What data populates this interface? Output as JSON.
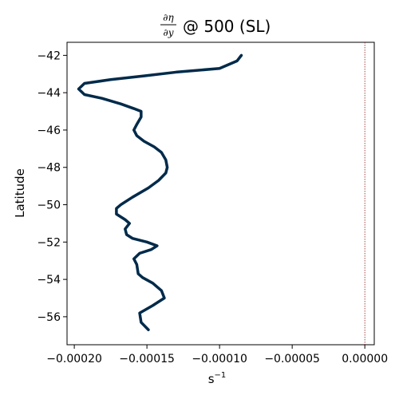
{
  "chart_data": {
    "type": "line",
    "title_prefix_numerator": "∂η",
    "title_prefix_denominator": "∂y",
    "title_suffix": "@ 500 (SL)",
    "xlabel_base": "s",
    "xlabel_exponent": "−1",
    "ylabel": "Latitude",
    "xlim": [
      -0.000205,
      6.5e-06
    ],
    "ylim": [
      -57.5,
      -41.3
    ],
    "xticks": [
      -0.0002,
      -0.00015,
      -0.0001,
      -5e-05,
      0.0
    ],
    "xtick_labels": [
      "−0.00020",
      "−0.00015",
      "−0.00010",
      "−0.00005",
      "0.00000"
    ],
    "yticks": [
      -42,
      -44,
      -46,
      -48,
      -50,
      -52,
      -54,
      -56
    ],
    "ytick_labels": [
      "−42",
      "−44",
      "−46",
      "−48",
      "−50",
      "−52",
      "−54",
      "−56"
    ],
    "reference_line": {
      "x": 0.0,
      "color": "#8b1a1a",
      "style": "dotted"
    },
    "series": [
      {
        "color": "#002a4a",
        "x": [
          -8.5e-05,
          -8.8e-05,
          -0.0001,
          -0.00013,
          -0.000152,
          -0.000175,
          -0.000193,
          -0.000197,
          -0.000193,
          -0.000181,
          -0.000168,
          -0.000159,
          -0.000154,
          -0.000154,
          -0.000157,
          -0.000159,
          -0.000157,
          -0.000152,
          -0.000145,
          -0.00014,
          -0.000137,
          -0.000136,
          -0.000137,
          -0.000142,
          -0.000149,
          -0.00016,
          -0.000168,
          -0.000171,
          -0.000171,
          -0.000165,
          -0.000162,
          -0.000165,
          -0.000164,
          -0.00016,
          -0.00015,
          -0.000143,
          -0.000147,
          -0.000155,
          -0.000159,
          -0.000157,
          -0.000156,
          -0.000153,
          -0.000146,
          -0.00014,
          -0.000138,
          -0.000146,
          -0.000155,
          -0.000154,
          -0.000149
        ],
        "y": [
          -42.0,
          -42.3,
          -42.7,
          -42.9,
          -43.1,
          -43.3,
          -43.5,
          -43.8,
          -44.1,
          -44.3,
          -44.6,
          -44.85,
          -45.0,
          -45.3,
          -45.7,
          -46.0,
          -46.3,
          -46.6,
          -46.9,
          -47.2,
          -47.6,
          -48.0,
          -48.3,
          -48.7,
          -49.1,
          -49.6,
          -50.0,
          -50.2,
          -50.5,
          -50.8,
          -51.0,
          -51.3,
          -51.6,
          -51.8,
          -52.0,
          -52.2,
          -52.4,
          -52.6,
          -52.9,
          -53.2,
          -53.7,
          -53.9,
          -54.2,
          -54.6,
          -55.0,
          -55.4,
          -55.8,
          -56.3,
          -56.7
        ]
      }
    ]
  }
}
